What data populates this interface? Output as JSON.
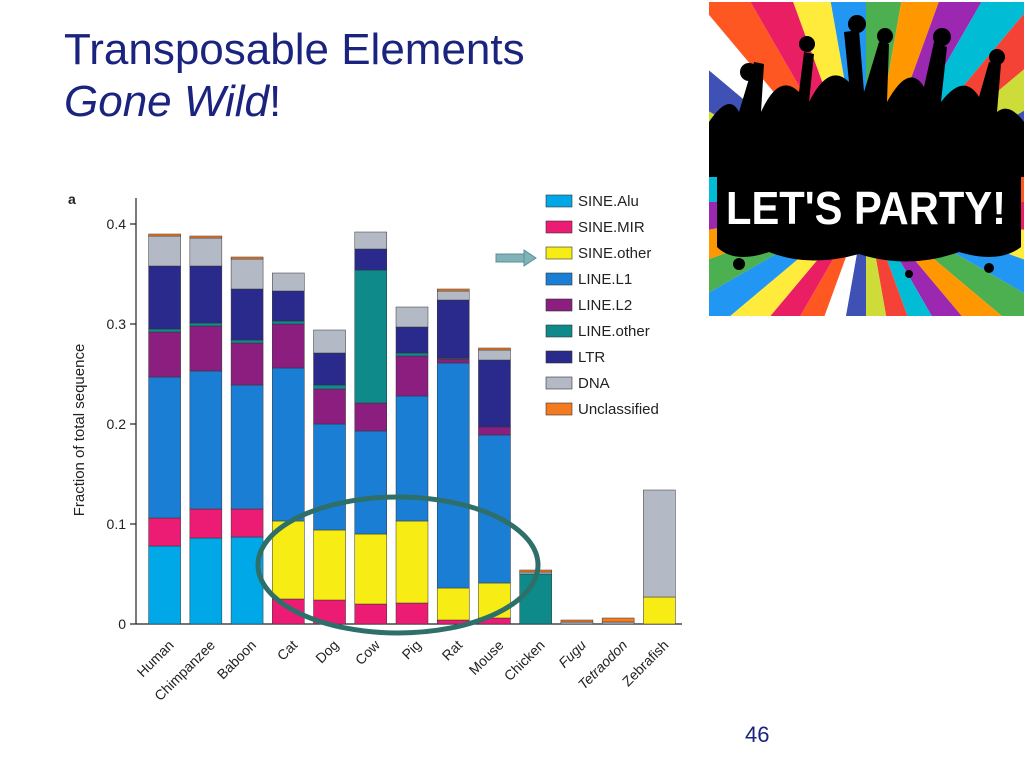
{
  "slide": {
    "title_line1": "Transposable Elements",
    "title_line2_italic": "Gone Wild",
    "title_line2_suffix": "!",
    "page_number": "46"
  },
  "party_image": {
    "banner_text": "LET'S PARTY!"
  },
  "colors": {
    "title": "#1a237e",
    "SINE.Alu": "#00a8e8",
    "SINE.MIR": "#ec1c74",
    "SINE.other": "#f7ec13",
    "LINE.L1": "#1a7fd4",
    "LINE.L2": "#8b1e7e",
    "LINE.other": "#0f8a8a",
    "LTR": "#2a2a8c",
    "DNA": "#b4b9c6",
    "Unclassified": "#f47a20"
  },
  "chart_data": {
    "type": "bar",
    "panel_label": "a",
    "ylabel": "Fraction of total sequence",
    "xlabel": "",
    "ylim": [
      0,
      0.44
    ],
    "yticks": [
      0,
      0.1,
      0.2,
      0.3,
      0.4
    ],
    "ytick_labels": [
      "0",
      "0.1",
      "0.2",
      "0.3",
      "0.4"
    ],
    "stacked": true,
    "legend_position": "top-right",
    "categories": [
      "Human",
      "Chimpanzee",
      "Baboon",
      "Cat",
      "Dog",
      "Cow",
      "Pig",
      "Rat",
      "Mouse",
      "Chicken",
      "Fugu",
      "Tetraodon",
      "Zebrafish"
    ],
    "italic_categories": [
      "Fugu",
      "Tetraodon"
    ],
    "series": [
      {
        "name": "SINE.Alu",
        "values": [
          0.078,
          0.086,
          0.087,
          0,
          0,
          0,
          0,
          0,
          0,
          0,
          0,
          0,
          0
        ]
      },
      {
        "name": "SINE.MIR",
        "values": [
          0.028,
          0.029,
          0.028,
          0.025,
          0.024,
          0.02,
          0.021,
          0.004,
          0.006,
          0,
          0,
          0,
          0
        ]
      },
      {
        "name": "SINE.other",
        "values": [
          0,
          0,
          0,
          0.078,
          0.07,
          0.07,
          0.082,
          0.032,
          0.035,
          0,
          0,
          0,
          0.027
        ]
      },
      {
        "name": "LINE.L1",
        "values": [
          0.141,
          0.138,
          0.124,
          0.153,
          0.106,
          0.103,
          0.125,
          0.225,
          0.148,
          0,
          0,
          0,
          0
        ]
      },
      {
        "name": "LINE.L2",
        "values": [
          0.045,
          0.045,
          0.042,
          0.044,
          0.035,
          0.028,
          0.04,
          0.004,
          0.008,
          0,
          0,
          0,
          0
        ]
      },
      {
        "name": "LINE.other",
        "values": [
          0.003,
          0.003,
          0.003,
          0.003,
          0.004,
          0.133,
          0.003,
          0.001,
          0,
          0.05,
          0,
          0,
          0
        ]
      },
      {
        "name": "LTR",
        "values": [
          0.063,
          0.057,
          0.051,
          0.03,
          0.032,
          0.021,
          0.026,
          0.058,
          0.067,
          0,
          0,
          0,
          0
        ]
      },
      {
        "name": "DNA",
        "values": [
          0.03,
          0.028,
          0.03,
          0.018,
          0.023,
          0.017,
          0.02,
          0.009,
          0.01,
          0.002,
          0.002,
          0.002,
          0.107
        ]
      },
      {
        "name": "Unclassified",
        "values": [
          0.002,
          0.002,
          0.002,
          0,
          0,
          0,
          0,
          0.002,
          0.002,
          0.002,
          0.002,
          0.004,
          0
        ]
      }
    ]
  }
}
